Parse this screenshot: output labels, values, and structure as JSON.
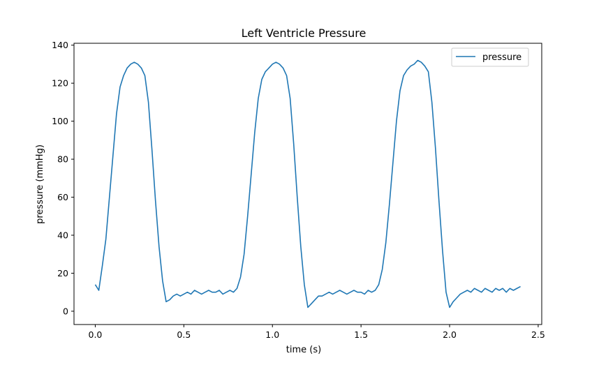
{
  "chart_data": {
    "type": "line",
    "title": "Left Ventricle Pressure",
    "xlabel": "time (s)",
    "ylabel": "pressure (mmHg)",
    "xlim": [
      -0.12,
      2.52
    ],
    "ylim": [
      -7,
      141
    ],
    "xticks": [
      0.0,
      0.5,
      1.0,
      1.5,
      2.0,
      2.5
    ],
    "xtick_labels": [
      "0.0",
      "0.5",
      "1.0",
      "1.5",
      "2.0",
      "2.5"
    ],
    "yticks": [
      0,
      20,
      40,
      60,
      80,
      100,
      120,
      140
    ],
    "ytick_labels": [
      "0",
      "20",
      "40",
      "60",
      "80",
      "100",
      "120",
      "140"
    ],
    "grid": false,
    "legend_position": "top-right",
    "series": [
      {
        "name": "pressure",
        "color": "#1f77b4",
        "x": [
          0.0,
          0.02,
          0.04,
          0.06,
          0.08,
          0.1,
          0.12,
          0.14,
          0.16,
          0.18,
          0.2,
          0.22,
          0.24,
          0.26,
          0.28,
          0.3,
          0.32,
          0.34,
          0.36,
          0.38,
          0.4,
          0.42,
          0.44,
          0.46,
          0.48,
          0.5,
          0.52,
          0.54,
          0.56,
          0.58,
          0.6,
          0.62,
          0.64,
          0.66,
          0.68,
          0.7,
          0.72,
          0.74,
          0.76,
          0.78,
          0.8,
          0.82,
          0.84,
          0.86,
          0.88,
          0.9,
          0.92,
          0.94,
          0.96,
          0.98,
          1.0,
          1.02,
          1.04,
          1.06,
          1.08,
          1.1,
          1.12,
          1.14,
          1.16,
          1.18,
          1.2,
          1.22,
          1.24,
          1.26,
          1.28,
          1.3,
          1.32,
          1.34,
          1.36,
          1.38,
          1.4,
          1.42,
          1.44,
          1.46,
          1.48,
          1.5,
          1.52,
          1.54,
          1.56,
          1.58,
          1.6,
          1.62,
          1.64,
          1.66,
          1.68,
          1.7,
          1.72,
          1.74,
          1.76,
          1.78,
          1.8,
          1.82,
          1.84,
          1.86,
          1.88,
          1.9,
          1.92,
          1.94,
          1.96,
          1.98,
          2.0,
          2.02,
          2.04,
          2.06,
          2.08,
          2.1,
          2.12,
          2.14,
          2.16,
          2.18,
          2.2,
          2.22,
          2.24,
          2.26,
          2.28,
          2.3,
          2.32,
          2.34,
          2.36,
          2.38,
          2.4
        ],
        "values": [
          14,
          11,
          24,
          38,
          60,
          82,
          104,
          118,
          124,
          128,
          130,
          131,
          130,
          128,
          124,
          110,
          85,
          58,
          34,
          16,
          5,
          6,
          8,
          9,
          8,
          9,
          10,
          9,
          11,
          10,
          9,
          10,
          11,
          10,
          10,
          11,
          9,
          10,
          11,
          10,
          12,
          18,
          30,
          50,
          72,
          94,
          112,
          122,
          126,
          128,
          130,
          131,
          130,
          128,
          124,
          112,
          88,
          60,
          34,
          14,
          2,
          4,
          6,
          8,
          8,
          9,
          10,
          9,
          10,
          11,
          10,
          9,
          10,
          11,
          10,
          10,
          9,
          11,
          10,
          11,
          14,
          22,
          36,
          56,
          78,
          100,
          116,
          124,
          127,
          129,
          130,
          132,
          131,
          129,
          126,
          110,
          86,
          58,
          32,
          10,
          2,
          5,
          7,
          9,
          10,
          11,
          10,
          12,
          11,
          10,
          12,
          11,
          10,
          12,
          11,
          12,
          10,
          12,
          11,
          12,
          13
        ]
      }
    ]
  }
}
